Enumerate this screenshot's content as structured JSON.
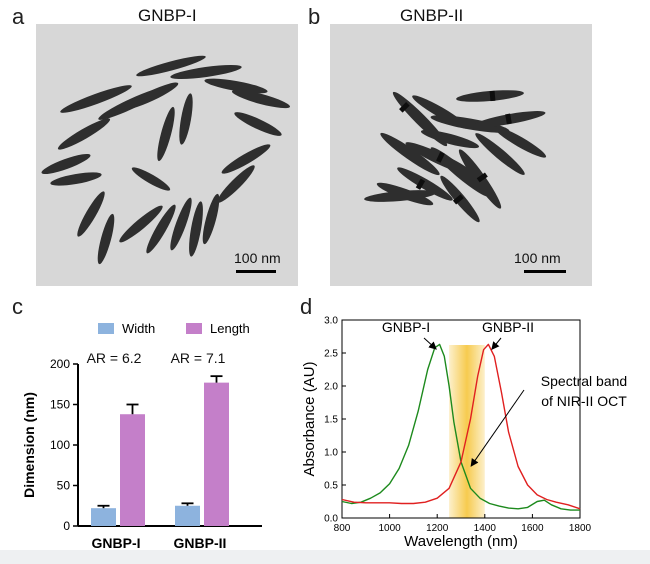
{
  "panels": {
    "a": {
      "letter": "a",
      "title": "GNBP-I",
      "scale": "100 nm"
    },
    "b": {
      "letter": "b",
      "title": "GNBP-II",
      "scale": "100 nm"
    },
    "c": {
      "letter": "c"
    },
    "d": {
      "letter": "d"
    }
  },
  "colors": {
    "width_bar": "#8db3de",
    "length_bar": "#c47fc9",
    "gnbp1_curve": "#1d8a1d",
    "gnbp2_curve": "#e02020",
    "oct_band": "#f5c230",
    "tem_bg": "#d7d7d7",
    "particle": "#2e2e2e"
  },
  "chart_data": [
    {
      "id": "c",
      "type": "bar",
      "ylabel": "Dimension (nm)",
      "xlabel": "",
      "ylim": [
        0,
        200
      ],
      "yticks": [
        0,
        50,
        100,
        150,
        200
      ],
      "categories": [
        "GNBP-I",
        "GNBP-II"
      ],
      "series": [
        {
          "name": "Width",
          "values": [
            22,
            25
          ],
          "errors": [
            3,
            3
          ]
        },
        {
          "name": "Length",
          "values": [
            138,
            177
          ],
          "errors": [
            12,
            8
          ]
        }
      ],
      "annotations": [
        "AR = 6.2",
        "AR = 7.1"
      ]
    },
    {
      "id": "d",
      "type": "line",
      "xlabel": "Wavelength (nm)",
      "ylabel": "Absorbance (AU)",
      "xlim": [
        800,
        1800
      ],
      "ylim": [
        0,
        3.0
      ],
      "xticks": [
        800,
        1000,
        1200,
        1400,
        1600,
        1800
      ],
      "yticks": [
        0.0,
        0.5,
        1.0,
        1.5,
        2.0,
        2.5,
        3.0
      ],
      "band": {
        "from": 1250,
        "to": 1400,
        "label_line1": "Spectral band",
        "label_line2": "of NIR-II OCT"
      },
      "series": [
        {
          "name": "GNBP-I",
          "x": [
            800,
            840,
            880,
            920,
            960,
            1000,
            1040,
            1080,
            1120,
            1160,
            1190,
            1210,
            1230,
            1250,
            1270,
            1300,
            1340,
            1380,
            1420,
            1460,
            1500,
            1540,
            1580,
            1620,
            1650,
            1680,
            1720,
            1760,
            1800
          ],
          "y": [
            0.25,
            0.22,
            0.24,
            0.3,
            0.38,
            0.52,
            0.75,
            1.1,
            1.62,
            2.25,
            2.58,
            2.63,
            2.45,
            2.0,
            1.45,
            0.85,
            0.45,
            0.3,
            0.22,
            0.18,
            0.15,
            0.14,
            0.16,
            0.25,
            0.27,
            0.2,
            0.14,
            0.12,
            0.12
          ]
        },
        {
          "name": "GNBP-II",
          "x": [
            800,
            850,
            900,
            950,
            1000,
            1050,
            1100,
            1150,
            1200,
            1250,
            1300,
            1340,
            1370,
            1395,
            1415,
            1440,
            1470,
            1500,
            1540,
            1580,
            1620,
            1660,
            1700,
            1750,
            1800
          ],
          "y": [
            0.28,
            0.24,
            0.23,
            0.23,
            0.23,
            0.22,
            0.22,
            0.24,
            0.3,
            0.45,
            0.85,
            1.5,
            2.15,
            2.55,
            2.63,
            2.45,
            1.9,
            1.3,
            0.78,
            0.5,
            0.35,
            0.28,
            0.24,
            0.2,
            0.14
          ]
        }
      ]
    }
  ]
}
